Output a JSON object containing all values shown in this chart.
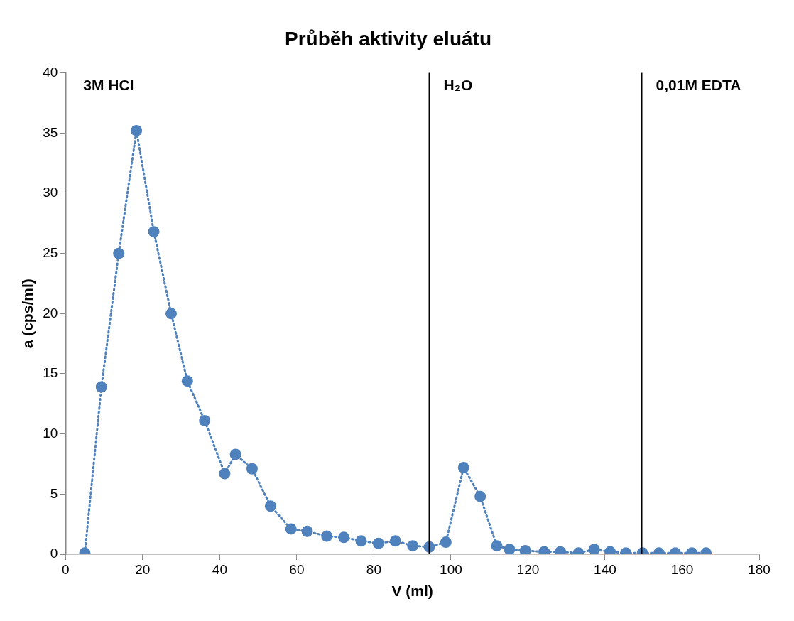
{
  "chart_data": {
    "type": "line",
    "title": "Průběh aktivity eluátu",
    "xlabel": "V (ml)",
    "ylabel": "a (cps/ml)",
    "series": [
      {
        "color": "#4f81bd",
        "marker": "circle",
        "line_style": "dotted",
        "x": [
          5.0,
          9.3,
          13.8,
          18.4,
          22.9,
          27.4,
          31.6,
          36.1,
          41.3,
          44.1,
          48.4,
          53.2,
          58.5,
          62.7,
          67.8,
          72.2,
          76.7,
          81.2,
          85.6,
          90.1,
          94.4,
          98.7,
          103.3,
          107.6,
          111.9,
          115.2,
          119.3,
          124.2,
          128.4,
          133.1,
          137.2,
          141.3,
          145.4,
          149.7,
          154.0,
          158.2,
          162.5,
          166.2
        ],
        "values": [
          0.1,
          13.9,
          25.0,
          35.2,
          26.8,
          20.0,
          14.4,
          11.1,
          6.7,
          8.3,
          7.1,
          4.0,
          2.1,
          1.9,
          1.5,
          1.4,
          1.1,
          0.9,
          1.1,
          0.7,
          0.6,
          1.0,
          7.2,
          4.8,
          0.7,
          0.4,
          0.3,
          0.2,
          0.2,
          0.1,
          0.4,
          0.2,
          0.1,
          0.1,
          0.1,
          0.1,
          0.1,
          0.1
        ]
      }
    ],
    "xlim": [
      0,
      180
    ],
    "xticks": [
      0,
      20,
      40,
      60,
      80,
      100,
      120,
      140,
      160,
      180
    ],
    "ylim": [
      0,
      40
    ],
    "yticks": [
      0,
      5,
      10,
      15,
      20,
      25,
      30,
      35,
      40
    ],
    "ref_lines": [
      {
        "axis": "x",
        "value": 94.4,
        "label": "H₂O",
        "color": "#000000"
      },
      {
        "axis": "x",
        "value": 149.5,
        "label": "0,01M EDTA",
        "color": "#000000"
      }
    ],
    "annotations": [
      "3M HCl"
    ],
    "grid": false,
    "legend": false
  }
}
